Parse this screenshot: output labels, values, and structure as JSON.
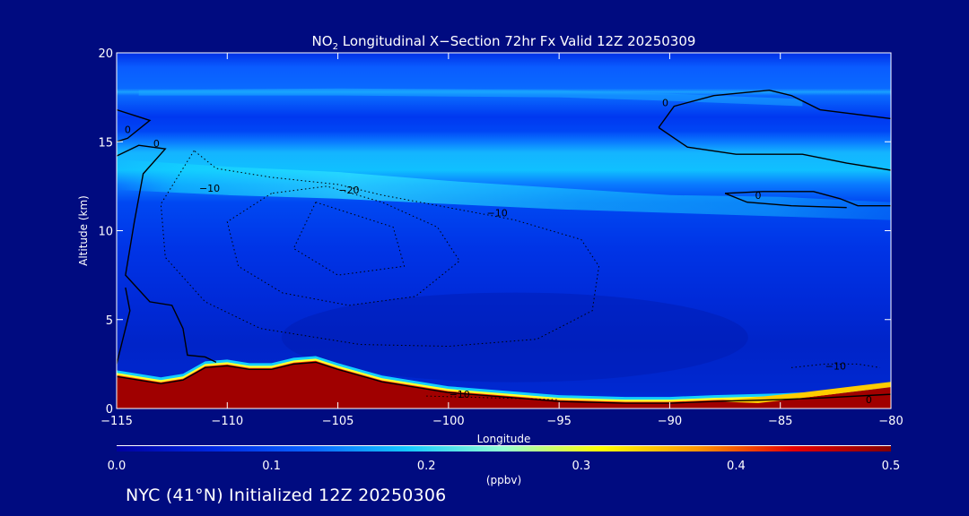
{
  "chart_data": {
    "type": "heatmap",
    "title_main": "NO",
    "title_sub": "2",
    "title_rest": " Longitudinal X−Section 72hr  Fx Valid 12Z 20250309",
    "xlabel": "Longitude",
    "ylabel": "Altitude (km)",
    "xlim": [
      -115,
      -80
    ],
    "ylim": [
      0,
      20
    ],
    "x_ticks": [
      -115,
      -110,
      -105,
      -100,
      -95,
      -90,
      -85,
      -80
    ],
    "x_tick_labels": [
      "−115",
      "−110",
      "−105",
      "−100",
      "−95",
      "−90",
      "−85",
      "−80"
    ],
    "y_ticks": [
      0,
      5,
      10,
      15,
      20
    ],
    "y_tick_labels": [
      "0",
      "5",
      "10",
      "15",
      "20"
    ],
    "colorbar": {
      "min": 0.0,
      "max": 0.5,
      "ticks": [
        0.0,
        0.1,
        0.2,
        0.3,
        0.4,
        0.5
      ],
      "tick_labels": [
        "0.0",
        "0.1",
        "0.2",
        "0.3",
        "0.4",
        "0.5"
      ],
      "units": "(ppbv)",
      "colors": [
        "#0000a0",
        "#0028e0",
        "#0a64ff",
        "#14c8ff",
        "#96ffd2",
        "#ffff00",
        "#ff9600",
        "#e60000",
        "#820000"
      ]
    },
    "background_color": "#000b80",
    "terrain_height_km": [
      [
        -115,
        1.8
      ],
      [
        -113,
        1.4
      ],
      [
        -112,
        1.6
      ],
      [
        -111,
        2.3
      ],
      [
        -110,
        2.4
      ],
      [
        -109,
        2.2
      ],
      [
        -108,
        2.2
      ],
      [
        -107,
        2.5
      ],
      [
        -106,
        2.6
      ],
      [
        -105,
        2.2
      ],
      [
        -103,
        1.5
      ],
      [
        -100,
        0.9
      ],
      [
        -97,
        0.6
      ],
      [
        -95,
        0.4
      ],
      [
        -92,
        0.3
      ],
      [
        -90,
        0.3
      ],
      [
        -88,
        0.4
      ],
      [
        -85,
        0.5
      ],
      [
        -83,
        0.6
      ],
      [
        -80,
        0.8
      ]
    ],
    "contour_labels": [
      {
        "value": "0",
        "x": -114.5,
        "y": 15.5
      },
      {
        "value": "0",
        "x": -113.2,
        "y": 14.7
      },
      {
        "value": "−10",
        "x": -110.8,
        "y": 12.2
      },
      {
        "value": "−20",
        "x": -104.5,
        "y": 12.1
      },
      {
        "value": "−10",
        "x": -97.8,
        "y": 10.8
      },
      {
        "value": "0",
        "x": -90.2,
        "y": 17.0
      },
      {
        "value": "0",
        "x": -86.0,
        "y": 11.8
      },
      {
        "value": "−10",
        "x": -82.5,
        "y": 2.2
      },
      {
        "value": "−10",
        "x": -99.5,
        "y": 0.6
      },
      {
        "value": "0",
        "x": -81.0,
        "y": 0.3
      }
    ]
  },
  "footer": "NYC (41°N) Initialized 12Z 20250306"
}
